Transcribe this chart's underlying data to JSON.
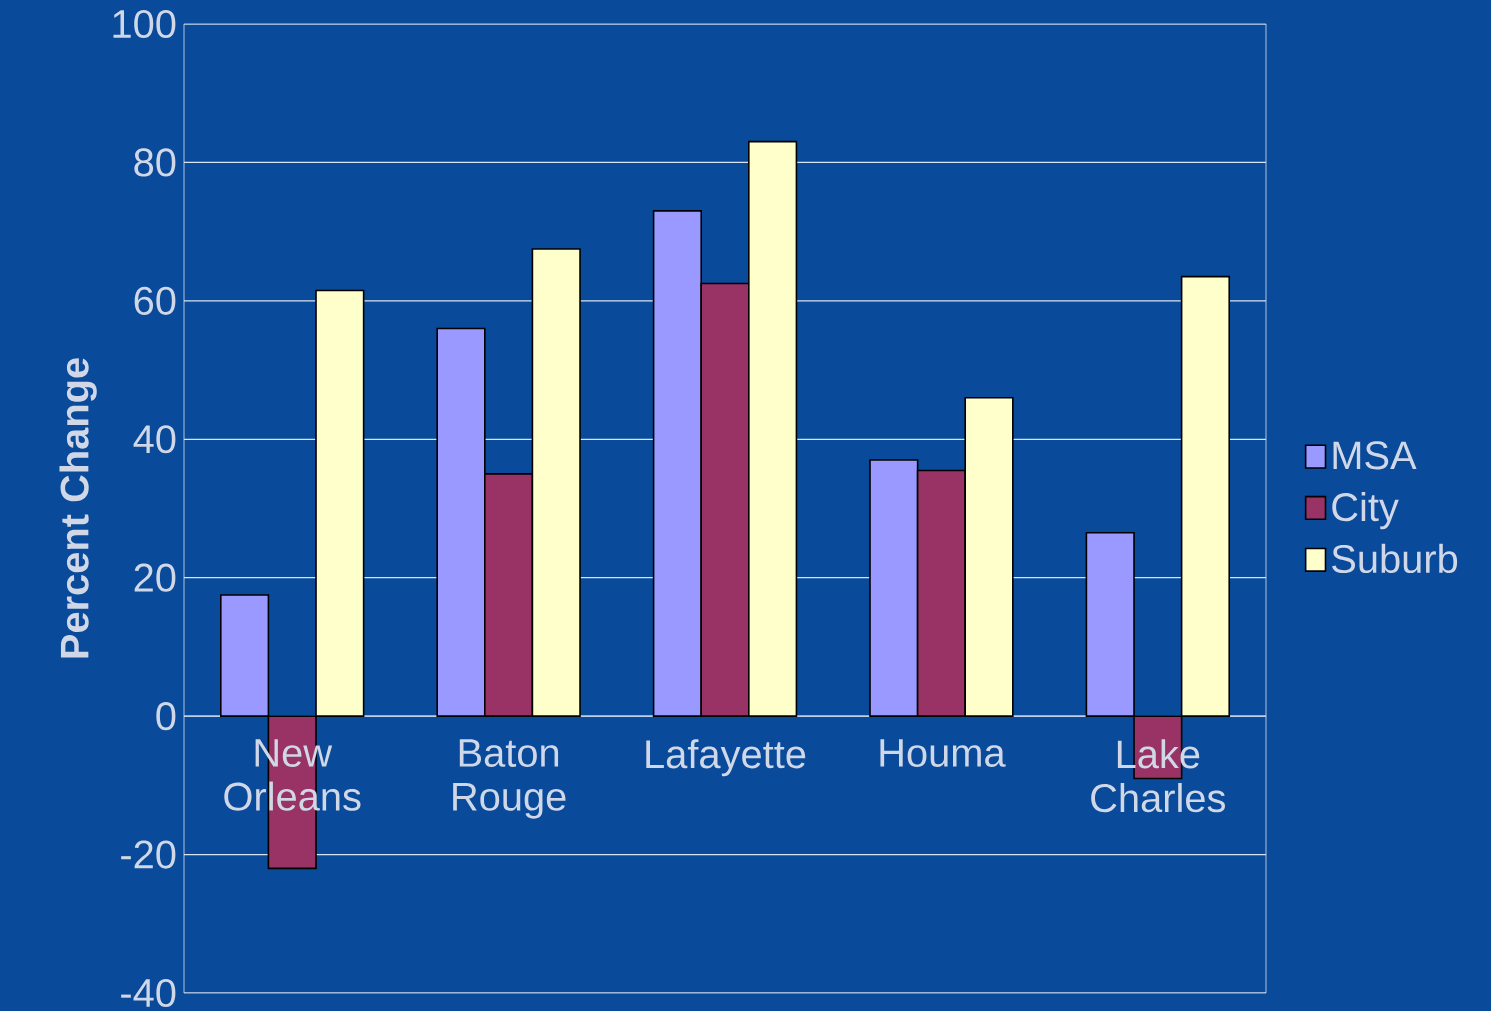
{
  "chart_data": {
    "type": "bar",
    "ylabel": "Percent Change",
    "categories": [
      "New Orleans",
      "Baton Rouge",
      "Lafayette",
      "Houma",
      "Lake Charles"
    ],
    "series": [
      {
        "name": "MSA",
        "color": "#9999ff",
        "values": [
          17.5,
          56,
          73,
          37,
          26.5
        ]
      },
      {
        "name": "City",
        "color": "#993366",
        "values": [
          -22,
          35,
          62.5,
          35.5,
          -9
        ]
      },
      {
        "name": "Suburb",
        "color": "#ffffcc",
        "values": [
          61.5,
          67.5,
          83,
          46,
          63.5
        ]
      }
    ],
    "ylim": [
      -40,
      100
    ],
    "yticks": [
      -40,
      -20,
      0,
      20,
      40,
      60,
      80,
      100
    ],
    "grid": "y",
    "legend": "right"
  }
}
